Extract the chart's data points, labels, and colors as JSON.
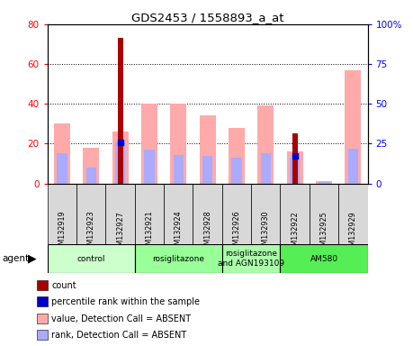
{
  "title": "GDS2453 / 1558893_a_at",
  "samples": [
    "GSM132919",
    "GSM132923",
    "GSM132927",
    "GSM132921",
    "GSM132924",
    "GSM132928",
    "GSM132926",
    "GSM132930",
    "GSM132922",
    "GSM132925",
    "GSM132929"
  ],
  "count_values": [
    0,
    0,
    73,
    0,
    0,
    0,
    0,
    0,
    25,
    0,
    0
  ],
  "percentile_rank": [
    0,
    0,
    26,
    0,
    0,
    0,
    0,
    0,
    17,
    0,
    0
  ],
  "value_absent": [
    30,
    18,
    26,
    40,
    40,
    34,
    28,
    39,
    16,
    1,
    57
  ],
  "rank_absent": [
    19,
    10,
    26,
    21,
    18,
    17,
    16,
    19,
    16,
    1,
    22
  ],
  "has_count": [
    false,
    false,
    true,
    false,
    false,
    false,
    false,
    false,
    true,
    false,
    false
  ],
  "has_rank": [
    false,
    false,
    true,
    false,
    false,
    false,
    false,
    false,
    true,
    false,
    false
  ],
  "ylim_left": [
    0,
    80
  ],
  "ylim_right": [
    0,
    100
  ],
  "yticks_left": [
    0,
    20,
    40,
    60,
    80
  ],
  "yticks_right": [
    0,
    25,
    50,
    75,
    100
  ],
  "color_count": "#aa0000",
  "color_rank": "#0000cc",
  "color_value_absent": "#ffaaaa",
  "color_rank_absent": "#aaaaff",
  "group_data": [
    {
      "start": 0,
      "end": 2,
      "color": "#ccffcc",
      "label": "control"
    },
    {
      "start": 3,
      "end": 5,
      "color": "#99ff99",
      "label": "rosiglitazone"
    },
    {
      "start": 6,
      "end": 7,
      "color": "#aaffaa",
      "label": "rosiglitazone\nand AGN193109"
    },
    {
      "start": 8,
      "end": 10,
      "color": "#55ee55",
      "label": "AM580"
    }
  ],
  "legend_items": [
    {
      "color": "#aa0000",
      "label": "count"
    },
    {
      "color": "#0000cc",
      "label": "percentile rank within the sample"
    },
    {
      "color": "#ffaaaa",
      "label": "value, Detection Call = ABSENT"
    },
    {
      "color": "#aaaaff",
      "label": "rank, Detection Call = ABSENT"
    }
  ]
}
